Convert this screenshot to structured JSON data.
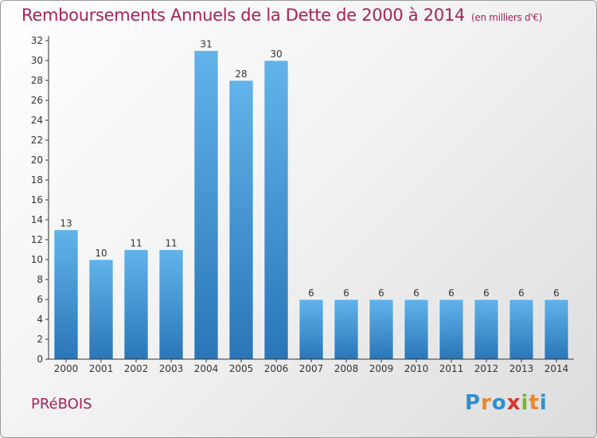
{
  "header": {
    "title": "Remboursements Annuels de la Dette de 2000 à 2014",
    "unit": "(en milliers d'€)"
  },
  "footer": {
    "commune": "PRéBOIS",
    "logo_letters": [
      {
        "ch": "P",
        "color": "#2f8fcf"
      },
      {
        "ch": "r",
        "color": "#e8862a"
      },
      {
        "ch": "o",
        "color": "#2f8fcf"
      },
      {
        "ch": "x",
        "color": "#d8352a"
      },
      {
        "ch": "i",
        "color": "#7bb534"
      },
      {
        "ch": "t",
        "color": "#e8862a"
      },
      {
        "ch": "i",
        "color": "#2f8fcf"
      }
    ]
  },
  "colors": {
    "bar_top": "#62b3ea",
    "bar_bottom": "#2a76b8",
    "axis": "#333333"
  },
  "chart_data": {
    "type": "bar",
    "title": "Remboursements Annuels de la Dette de 2000 à 2014",
    "ylabel": "(en milliers d'€)",
    "xlabel": "",
    "categories": [
      "2000",
      "2001",
      "2002",
      "2003",
      "2004",
      "2005",
      "2006",
      "2007",
      "2008",
      "2009",
      "2010",
      "2011",
      "2012",
      "2013",
      "2014"
    ],
    "values": [
      13,
      10,
      11,
      11,
      31,
      28,
      30,
      6,
      6,
      6,
      6,
      6,
      6,
      6,
      6
    ],
    "ylim": [
      0,
      32
    ],
    "yticks": [
      0,
      2,
      4,
      6,
      8,
      10,
      12,
      14,
      16,
      18,
      20,
      22,
      24,
      26,
      28,
      30,
      32
    ],
    "grid": false,
    "legend": "none"
  }
}
